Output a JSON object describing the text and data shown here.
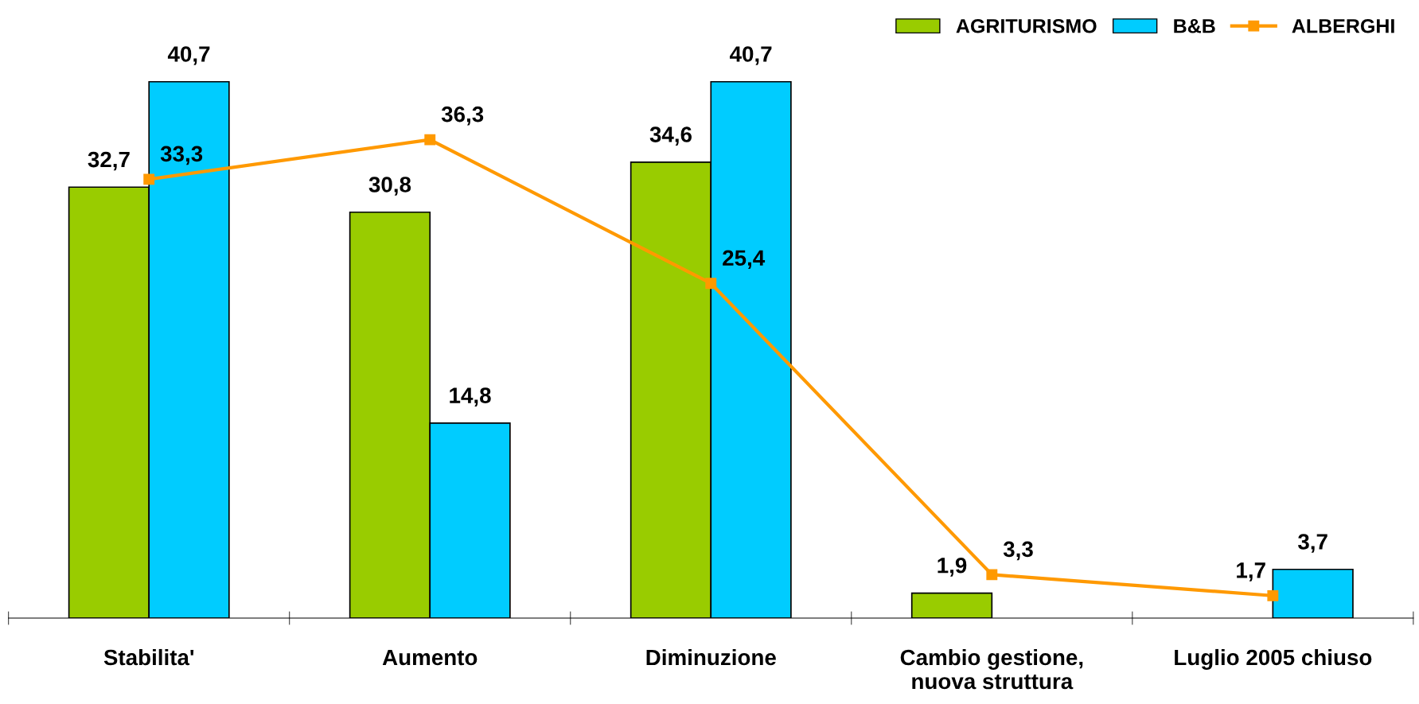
{
  "chart_data": {
    "type": "bar",
    "categories": [
      "Stabilita'",
      "Aumento",
      "Diminuzione",
      "Cambio gestione,\nnuova struttura",
      "Luglio 2005 chiuso"
    ],
    "series": [
      {
        "name": "AGRITURISMO",
        "color": "#99cc00",
        "values": [
          32.7,
          30.8,
          34.6,
          1.9,
          null
        ],
        "value_labels": [
          "32,7",
          "30,8",
          "34,6",
          "1,9",
          null
        ]
      },
      {
        "name": "B&B",
        "color": "#00ccff",
        "values": [
          40.7,
          14.8,
          40.7,
          null,
          3.7
        ],
        "value_labels": [
          "40,7",
          "14,8",
          "40,7",
          null,
          "3,7"
        ]
      },
      {
        "name": "ALBERGHI",
        "color": "#ff9900",
        "type": "line",
        "marker": "square",
        "values": [
          33.3,
          36.3,
          25.4,
          3.3,
          1.7
        ],
        "value_labels": [
          "33,3",
          "36,3",
          "25,4",
          "3,3",
          "1,7"
        ]
      }
    ],
    "legend": "top right",
    "grid": false,
    "tick_labels": "x"
  }
}
